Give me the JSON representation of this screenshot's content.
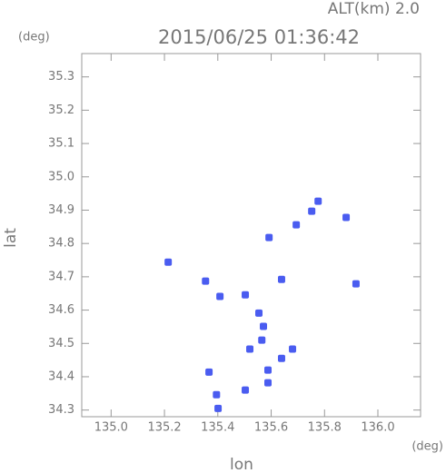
{
  "chart_data": {
    "type": "scatter",
    "title": "2015/06/25 01:36:42",
    "altitude_label": "ALT(km) 2.0",
    "y_unit": "(deg)",
    "x_unit": "(deg)",
    "xlabel": "lon",
    "ylabel": "lat",
    "xlim": [
      134.89,
      136.16
    ],
    "ylim": [
      34.28,
      35.37
    ],
    "xticks": [
      {
        "value": 135,
        "label": "135.0"
      },
      135.2,
      135.4,
      135.6,
      135.8,
      {
        "value": 136,
        "label": "136.0"
      }
    ],
    "yticks": [
      34.3,
      34.4,
      34.5,
      34.6,
      34.7,
      34.8,
      34.9,
      {
        "value": 35,
        "label": "35.0"
      },
      35.1,
      35.2,
      35.3
    ],
    "color": "#4a5cf0",
    "x": [
      135.776,
      135.881,
      135.752,
      135.694,
      135.592,
      135.214,
      135.354,
      135.408,
      135.503,
      135.639,
      135.918,
      135.554,
      135.571,
      135.565,
      135.52,
      135.68,
      135.639,
      135.367,
      135.588,
      135.395,
      135.401,
      135.503,
      135.588
    ],
    "values": [
      34.927,
      34.878,
      34.897,
      34.856,
      34.818,
      34.744,
      34.687,
      34.641,
      34.646,
      34.692,
      34.679,
      34.591,
      34.551,
      34.51,
      34.483,
      34.483,
      34.455,
      34.414,
      34.42,
      34.346,
      34.305,
      34.36,
      34.382
    ]
  }
}
